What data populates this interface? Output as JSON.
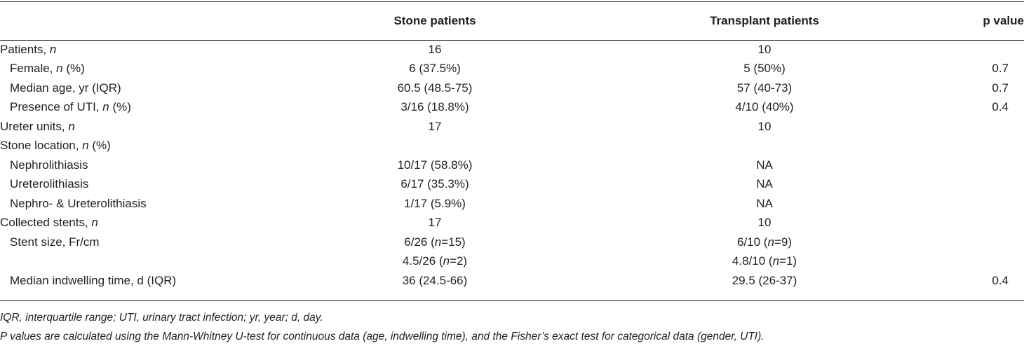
{
  "header": {
    "col0": "",
    "col1": "Stone patients",
    "col2": "Transplant patients",
    "col3": "p value"
  },
  "rows": [
    {
      "label": "Patients, ",
      "label_italic": "n",
      "label_tail": "",
      "indent": false,
      "stone": "16",
      "transplant": "10",
      "p": ""
    },
    {
      "label": "Female, ",
      "label_italic": "n",
      "label_tail": " (%)",
      "indent": true,
      "stone": "6 (37.5%)",
      "transplant": "5 (50%)",
      "p": "0.7"
    },
    {
      "label": "Median age, yr (IQR)",
      "label_italic": "",
      "label_tail": "",
      "indent": true,
      "stone": "60.5 (48.5-75)",
      "transplant": "57 (40-73)",
      "p": "0.7"
    },
    {
      "label": "Presence of UTI, ",
      "label_italic": "n",
      "label_tail": " (%)",
      "indent": true,
      "stone": "3/16 (18.8%)",
      "transplant": "4/10 (40%)",
      "p": "0.4"
    },
    {
      "label": "Ureter units, ",
      "label_italic": "n",
      "label_tail": "",
      "indent": false,
      "stone": "17",
      "transplant": "10",
      "p": ""
    },
    {
      "label": "Stone location, ",
      "label_italic": "n",
      "label_tail": " (%)",
      "indent": false,
      "stone": "",
      "transplant": "",
      "p": ""
    },
    {
      "label": "Nephrolithiasis",
      "label_italic": "",
      "label_tail": "",
      "indent": true,
      "stone": "10/17 (58.8%)",
      "transplant": "NA",
      "p": ""
    },
    {
      "label": "Ureterolithiasis",
      "label_italic": "",
      "label_tail": "",
      "indent": true,
      "stone": "6/17 (35.3%)",
      "transplant": "NA",
      "p": ""
    },
    {
      "label": "Nephro- & Ureterolithiasis",
      "label_italic": "",
      "label_tail": "",
      "indent": true,
      "stone": "1/17 (5.9%)",
      "transplant": "NA",
      "p": ""
    },
    {
      "label": "Collected stents, ",
      "label_italic": "n",
      "label_tail": "",
      "indent": false,
      "stone": "17",
      "transplant": "10",
      "p": ""
    },
    {
      "label": "Stent size, Fr/cm",
      "label_italic": "",
      "label_tail": "",
      "indent": true,
      "stone": "6/26 (",
      "stone_n": "n",
      "stone_tail": "=15)",
      "transplant": "6/10 (",
      "transplant_n": "n",
      "transplant_tail": "=9)",
      "p": ""
    },
    {
      "label": "",
      "label_italic": "",
      "label_tail": "",
      "indent": true,
      "stone": "4.5/26 (",
      "stone_n": "n",
      "stone_tail": "=2)",
      "transplant": "4.8/10 (",
      "transplant_n": "n",
      "transplant_tail": "=1)",
      "p": ""
    },
    {
      "label": "Median indwelling time, d (IQR)",
      "label_italic": "",
      "label_tail": "",
      "indent": true,
      "stone": "36 (24.5-66)",
      "transplant": "29.5 (26-37)",
      "p": "0.4"
    }
  ],
  "notes": {
    "abbreviations": "IQR, interquartile range; UTI, urinary tract infection; yr, year; d, day.",
    "pvalues": "P values are calculated using the Mann-Whitney U-test for continuous data (age, indwelling time), and the Fisher’s exact test for categorical data (gender, UTI)."
  }
}
